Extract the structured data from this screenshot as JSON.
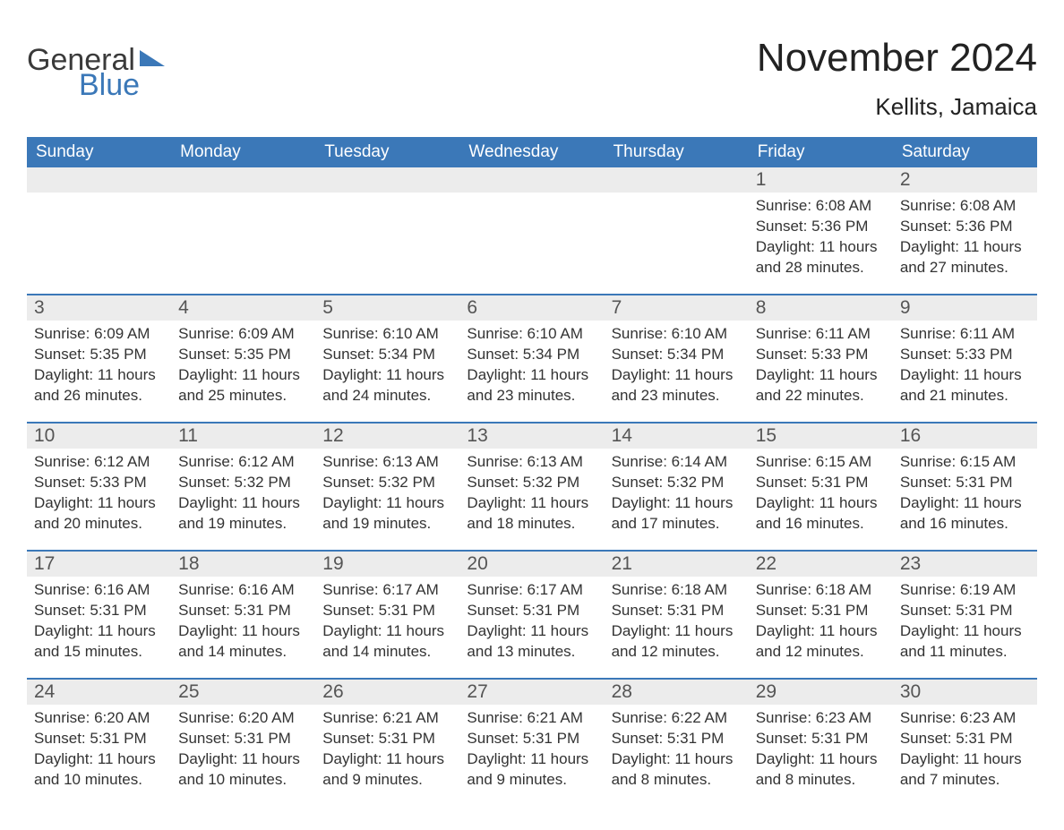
{
  "logo": {
    "part1": "General",
    "part2": "Blue"
  },
  "title": "November 2024",
  "location": "Kellits, Jamaica",
  "colors": {
    "header_bg": "#3b78b8",
    "header_text": "#ffffff",
    "daynum_bg": "#ececec",
    "rule": "#3b78b8",
    "text": "#333333"
  },
  "day_headers": [
    "Sunday",
    "Monday",
    "Tuesday",
    "Wednesday",
    "Thursday",
    "Friday",
    "Saturday"
  ],
  "weeks": [
    [
      null,
      null,
      null,
      null,
      null,
      {
        "n": "1",
        "sr": "6:08 AM",
        "ss": "5:36 PM",
        "dl": "11 hours and 28 minutes."
      },
      {
        "n": "2",
        "sr": "6:08 AM",
        "ss": "5:36 PM",
        "dl": "11 hours and 27 minutes."
      }
    ],
    [
      {
        "n": "3",
        "sr": "6:09 AM",
        "ss": "5:35 PM",
        "dl": "11 hours and 26 minutes."
      },
      {
        "n": "4",
        "sr": "6:09 AM",
        "ss": "5:35 PM",
        "dl": "11 hours and 25 minutes."
      },
      {
        "n": "5",
        "sr": "6:10 AM",
        "ss": "5:34 PM",
        "dl": "11 hours and 24 minutes."
      },
      {
        "n": "6",
        "sr": "6:10 AM",
        "ss": "5:34 PM",
        "dl": "11 hours and 23 minutes."
      },
      {
        "n": "7",
        "sr": "6:10 AM",
        "ss": "5:34 PM",
        "dl": "11 hours and 23 minutes."
      },
      {
        "n": "8",
        "sr": "6:11 AM",
        "ss": "5:33 PM",
        "dl": "11 hours and 22 minutes."
      },
      {
        "n": "9",
        "sr": "6:11 AM",
        "ss": "5:33 PM",
        "dl": "11 hours and 21 minutes."
      }
    ],
    [
      {
        "n": "10",
        "sr": "6:12 AM",
        "ss": "5:33 PM",
        "dl": "11 hours and 20 minutes."
      },
      {
        "n": "11",
        "sr": "6:12 AM",
        "ss": "5:32 PM",
        "dl": "11 hours and 19 minutes."
      },
      {
        "n": "12",
        "sr": "6:13 AM",
        "ss": "5:32 PM",
        "dl": "11 hours and 19 minutes."
      },
      {
        "n": "13",
        "sr": "6:13 AM",
        "ss": "5:32 PM",
        "dl": "11 hours and 18 minutes."
      },
      {
        "n": "14",
        "sr": "6:14 AM",
        "ss": "5:32 PM",
        "dl": "11 hours and 17 minutes."
      },
      {
        "n": "15",
        "sr": "6:15 AM",
        "ss": "5:31 PM",
        "dl": "11 hours and 16 minutes."
      },
      {
        "n": "16",
        "sr": "6:15 AM",
        "ss": "5:31 PM",
        "dl": "11 hours and 16 minutes."
      }
    ],
    [
      {
        "n": "17",
        "sr": "6:16 AM",
        "ss": "5:31 PM",
        "dl": "11 hours and 15 minutes."
      },
      {
        "n": "18",
        "sr": "6:16 AM",
        "ss": "5:31 PM",
        "dl": "11 hours and 14 minutes."
      },
      {
        "n": "19",
        "sr": "6:17 AM",
        "ss": "5:31 PM",
        "dl": "11 hours and 14 minutes."
      },
      {
        "n": "20",
        "sr": "6:17 AM",
        "ss": "5:31 PM",
        "dl": "11 hours and 13 minutes."
      },
      {
        "n": "21",
        "sr": "6:18 AM",
        "ss": "5:31 PM",
        "dl": "11 hours and 12 minutes."
      },
      {
        "n": "22",
        "sr": "6:18 AM",
        "ss": "5:31 PM",
        "dl": "11 hours and 12 minutes."
      },
      {
        "n": "23",
        "sr": "6:19 AM",
        "ss": "5:31 PM",
        "dl": "11 hours and 11 minutes."
      }
    ],
    [
      {
        "n": "24",
        "sr": "6:20 AM",
        "ss": "5:31 PM",
        "dl": "11 hours and 10 minutes."
      },
      {
        "n": "25",
        "sr": "6:20 AM",
        "ss": "5:31 PM",
        "dl": "11 hours and 10 minutes."
      },
      {
        "n": "26",
        "sr": "6:21 AM",
        "ss": "5:31 PM",
        "dl": "11 hours and 9 minutes."
      },
      {
        "n": "27",
        "sr": "6:21 AM",
        "ss": "5:31 PM",
        "dl": "11 hours and 9 minutes."
      },
      {
        "n": "28",
        "sr": "6:22 AM",
        "ss": "5:31 PM",
        "dl": "11 hours and 8 minutes."
      },
      {
        "n": "29",
        "sr": "6:23 AM",
        "ss": "5:31 PM",
        "dl": "11 hours and 8 minutes."
      },
      {
        "n": "30",
        "sr": "6:23 AM",
        "ss": "5:31 PM",
        "dl": "11 hours and 7 minutes."
      }
    ]
  ],
  "labels": {
    "sunrise": "Sunrise: ",
    "sunset": "Sunset: ",
    "daylight": "Daylight: "
  }
}
